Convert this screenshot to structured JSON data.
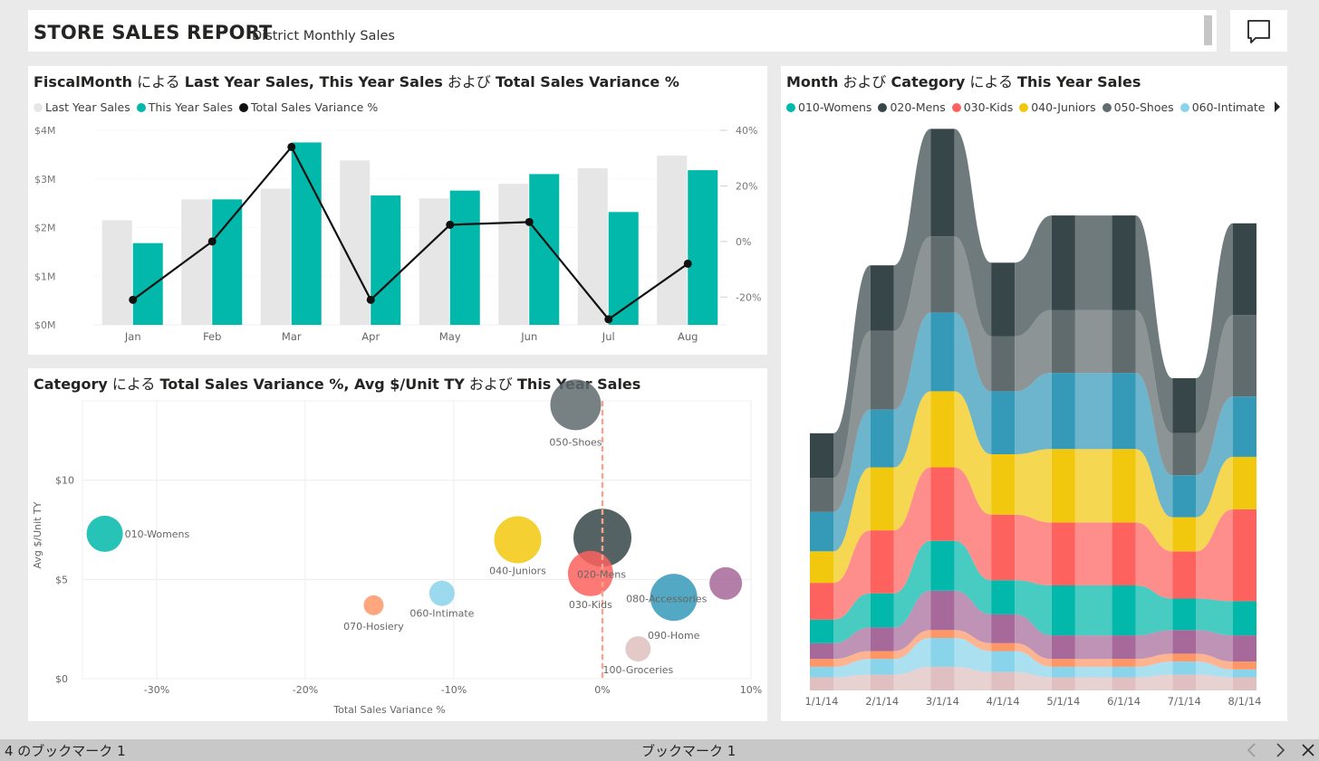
{
  "header": {
    "title": "STORE SALES REPORT",
    "subtitle": "District Monthly Sales",
    "comment_icon": "comment-icon"
  },
  "combo": {
    "title_parts": [
      {
        "t": "FiscalMonth",
        "b": true
      },
      {
        "t": " による ",
        "b": false
      },
      {
        "t": "Last Year Sales, This Year Sales",
        "b": true
      },
      {
        "t": " および ",
        "b": false
      },
      {
        "t": "Total Sales Variance %",
        "b": true
      }
    ],
    "legend": [
      {
        "name": "Last Year Sales",
        "color": "#e6e6e6"
      },
      {
        "name": "This Year Sales",
        "color": "#01b8aa"
      },
      {
        "name": "Total Sales Variance %",
        "color": "#111111"
      }
    ]
  },
  "scatter": {
    "title_parts": [
      {
        "t": "Category",
        "b": true
      },
      {
        "t": " による ",
        "b": false
      },
      {
        "t": "Total Sales Variance %, Avg $/Unit TY",
        "b": true
      },
      {
        "t": " および ",
        "b": false
      },
      {
        "t": "This Year Sales",
        "b": true
      }
    ]
  },
  "ribbon": {
    "title_parts": [
      {
        "t": "Month",
        "b": true
      },
      {
        "t": " および ",
        "b": false
      },
      {
        "t": "Category",
        "b": true
      },
      {
        "t": " による ",
        "b": false
      },
      {
        "t": "This Year Sales",
        "b": true
      }
    ],
    "legend": [
      {
        "name": "010-Womens",
        "color": "#01b8aa"
      },
      {
        "name": "020-Mens",
        "color": "#374649"
      },
      {
        "name": "030-Kids",
        "color": "#fd625e"
      },
      {
        "name": "040-Juniors",
        "color": "#f2c80f"
      },
      {
        "name": "050-Shoes",
        "color": "#5f6b6d"
      },
      {
        "name": "060-Intimate",
        "color": "#8ad4eb"
      }
    ],
    "legend_arrow_icon": "caret-right-icon"
  },
  "chart_data": [
    {
      "type": "bar",
      "categories": [
        "Jan",
        "Feb",
        "Mar",
        "Apr",
        "May",
        "Jun",
        "Jul",
        "Aug"
      ],
      "series": [
        {
          "name": "Last Year Sales",
          "values": [
            2.15,
            2.58,
            2.8,
            3.38,
            2.6,
            2.9,
            3.22,
            3.48
          ]
        },
        {
          "name": "This Year Sales",
          "values": [
            1.68,
            2.58,
            3.75,
            2.66,
            2.76,
            3.1,
            2.32,
            3.18
          ]
        },
        {
          "name": "Total Sales Variance %",
          "type": "line",
          "axis": "right",
          "values": [
            -21,
            0,
            34,
            -21,
            6,
            7,
            -28,
            -8
          ]
        }
      ],
      "y_ticks": [
        "$0M",
        "$1M",
        "$2M",
        "$3M",
        "$4M"
      ],
      "ylim": [
        0,
        4
      ],
      "y2_ticks": [
        "-20%",
        "0%",
        "20%",
        "40%"
      ],
      "y2lim": [
        -30,
        40
      ],
      "grid": true
    },
    {
      "type": "scatter",
      "xlabel": "Total Sales Variance %",
      "ylabel": "Avg $/Unit TY",
      "x_ticks": [
        "-30%",
        "-20%",
        "-10%",
        "0%",
        "10%"
      ],
      "xlim": [
        -35,
        10
      ],
      "y_ticks": [
        "$0",
        "$5",
        "$10"
      ],
      "ylim": [
        0,
        14
      ],
      "reference_line_x": 0,
      "points": [
        {
          "label": "010-Womens",
          "x": -33.5,
          "y": 7.3,
          "size": 20,
          "color": "#01b8aa"
        },
        {
          "label": "020-Mens",
          "x": 0,
          "y": 7.1,
          "size": 32,
          "color": "#374649"
        },
        {
          "label": "030-Kids",
          "x": -0.8,
          "y": 5.3,
          "size": 25,
          "color": "#fd625e"
        },
        {
          "label": "040-Juniors",
          "x": -5.7,
          "y": 7.0,
          "size": 26,
          "color": "#f2c80f"
        },
        {
          "label": "050-Shoes",
          "x": -1.8,
          "y": 13.8,
          "size": 28,
          "color": "#5f6b6d"
        },
        {
          "label": "060-Intimate",
          "x": -10.8,
          "y": 4.3,
          "size": 14,
          "color": "#8ad4eb"
        },
        {
          "label": "070-Hosiery",
          "x": -15.4,
          "y": 3.7,
          "size": 11,
          "color": "#fe9666"
        },
        {
          "label": "080-Accessories",
          "x": 8.3,
          "y": 4.8,
          "size": 18,
          "color": "#a66999"
        },
        {
          "label": "090-Home",
          "x": 4.8,
          "y": 4.1,
          "size": 26,
          "color": "#3599b8"
        },
        {
          "label": "100-Groceries",
          "x": 2.4,
          "y": 1.5,
          "size": 14,
          "color": "#dfbfbf"
        }
      ],
      "grid": true
    },
    {
      "type": "area",
      "subtype": "ribbon",
      "categories": [
        "1/1/14",
        "2/1/14",
        "3/1/14",
        "4/1/14",
        "5/1/14",
        "6/1/14",
        "7/1/14",
        "8/1/14"
      ],
      "series_order_note_none": "",
      "series": [
        {
          "name": "100-Groceries",
          "color": "#dfbfbf",
          "values": [
            10,
            12,
            18,
            14,
            10,
            10,
            12,
            10
          ]
        },
        {
          "name": "060-Intimate",
          "color": "#8ad4eb",
          "values": [
            8,
            12,
            22,
            16,
            8,
            8,
            10,
            6
          ]
        },
        {
          "name": "070-Hosiery",
          "color": "#fe9666",
          "values": [
            6,
            6,
            6,
            6,
            6,
            6,
            6,
            6
          ]
        },
        {
          "name": "080-Accessories",
          "color": "#a66999",
          "values": [
            12,
            18,
            30,
            22,
            18,
            18,
            18,
            20
          ]
        },
        {
          "name": "010-Womens",
          "color": "#01b8aa",
          "values": [
            18,
            26,
            38,
            26,
            38,
            38,
            24,
            26
          ]
        },
        {
          "name": "030-Kids",
          "color": "#fd625e",
          "values": [
            28,
            48,
            56,
            50,
            48,
            48,
            36,
            70
          ]
        },
        {
          "name": "040-Juniors",
          "color": "#f2c80f",
          "values": [
            24,
            48,
            58,
            46,
            56,
            56,
            26,
            40
          ]
        },
        {
          "name": "090-Home",
          "color": "#3599b8",
          "values": [
            30,
            44,
            60,
            48,
            58,
            58,
            32,
            46
          ]
        },
        {
          "name": "050-Shoes",
          "color": "#5f6b6d",
          "values": [
            26,
            60,
            58,
            42,
            48,
            48,
            32,
            62
          ]
        },
        {
          "name": "020-Mens",
          "color": "#374649",
          "values": [
            34,
            50,
            82,
            56,
            72,
            72,
            42,
            70
          ]
        }
      ]
    }
  ],
  "bottom_bar": {
    "left_text": "4 のブックマーク 1",
    "center_text": "ブックマーク 1",
    "prev_icon": "chevron-left-icon",
    "next_icon": "chevron-right-icon",
    "close_icon": "close-icon"
  }
}
